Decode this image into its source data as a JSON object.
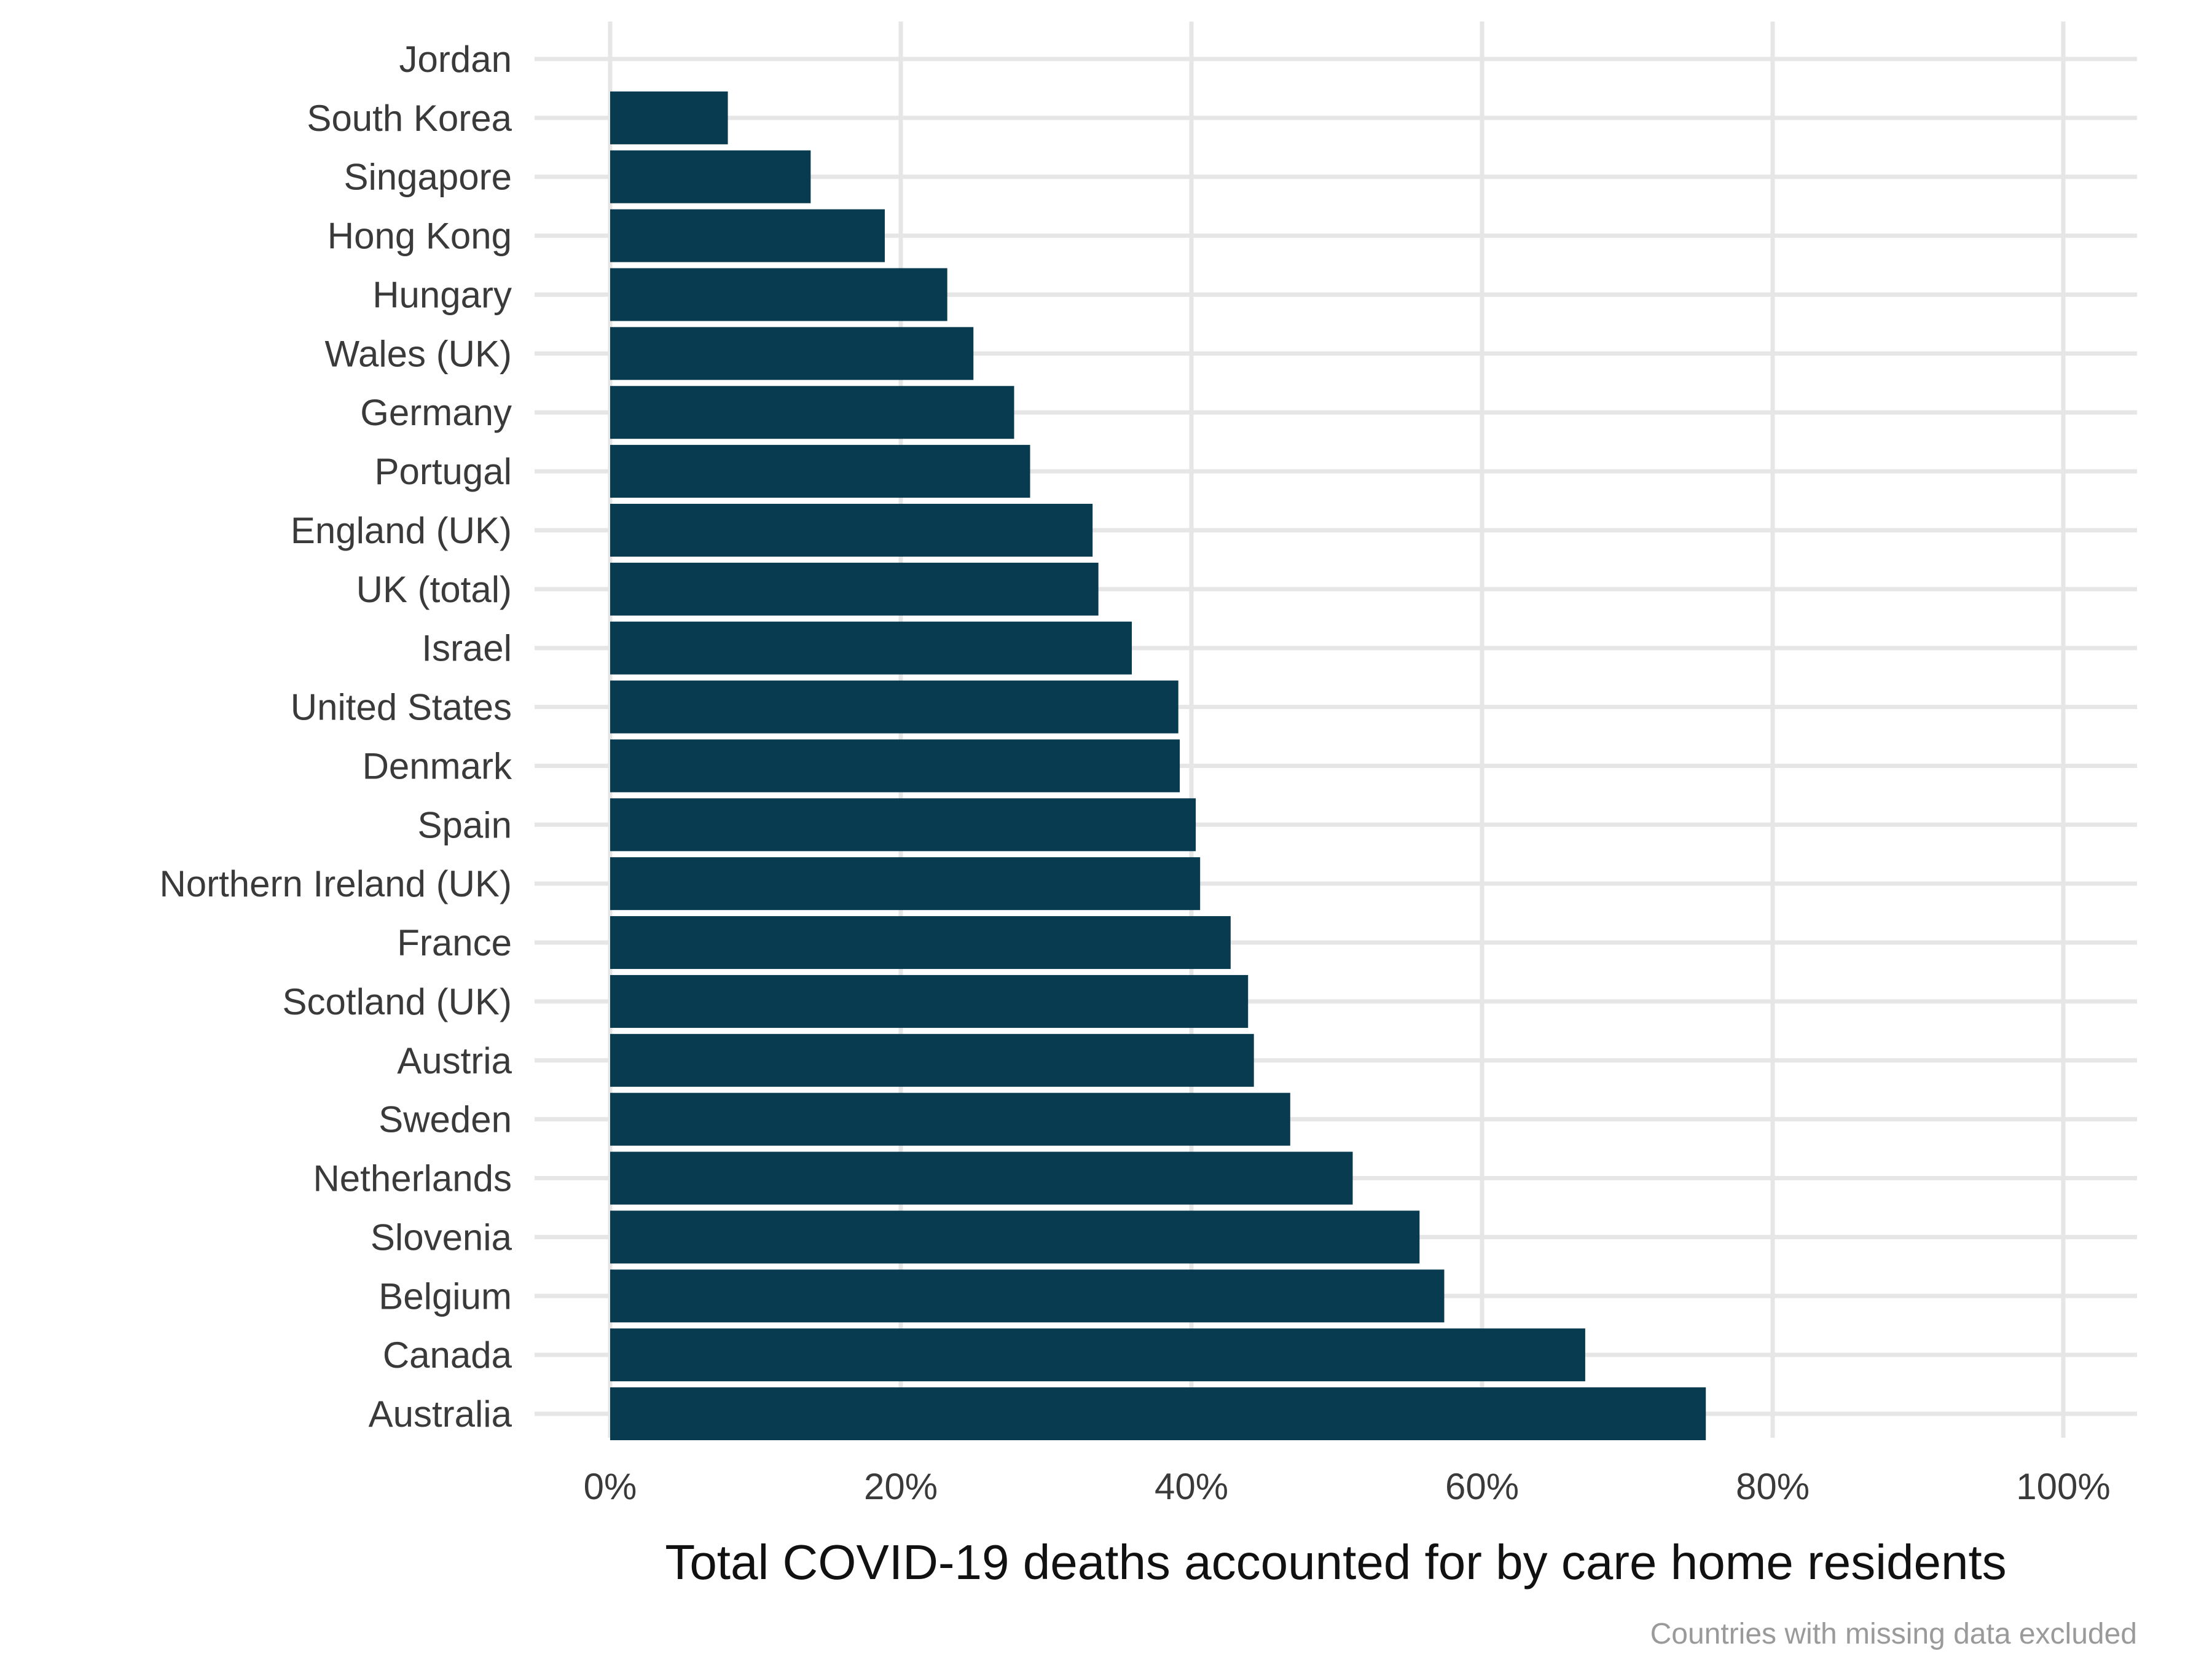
{
  "chart_data": {
    "type": "bar",
    "orientation": "horizontal",
    "categories": [
      "Jordan",
      "South Korea",
      "Singapore",
      "Hong Kong",
      "Hungary",
      "Wales (UK)",
      "Germany",
      "Portugal",
      "England (UK)",
      "UK (total)",
      "Israel",
      "United States",
      "Denmark",
      "Spain",
      "Northern Ireland (UK)",
      "France",
      "Scotland (UK)",
      "Austria",
      "Sweden",
      "Netherlands",
      "Slovenia",
      "Belgium",
      "Canada",
      "Australia"
    ],
    "values": [
      0,
      8.1,
      13.8,
      18.9,
      23.2,
      25.0,
      27.8,
      28.9,
      33.2,
      33.6,
      35.9,
      39.1,
      39.2,
      40.3,
      40.6,
      42.7,
      43.9,
      44.3,
      46.8,
      51.1,
      55.7,
      57.4,
      67.1,
      75.4
    ],
    "value_unit": "%",
    "xlim": [
      0,
      100
    ],
    "x_ticks": [
      "0%",
      "20%",
      "40%",
      "60%",
      "80%",
      "100%"
    ],
    "x_tick_values": [
      0,
      20,
      40,
      60,
      80,
      100
    ],
    "xlabel": "Total COVID-19 deaths accounted for by care home residents",
    "ylabel": "",
    "title": "",
    "caption": "Countries with missing data excluded",
    "grid": true,
    "legend": "none",
    "bar_color": "#093b50"
  }
}
